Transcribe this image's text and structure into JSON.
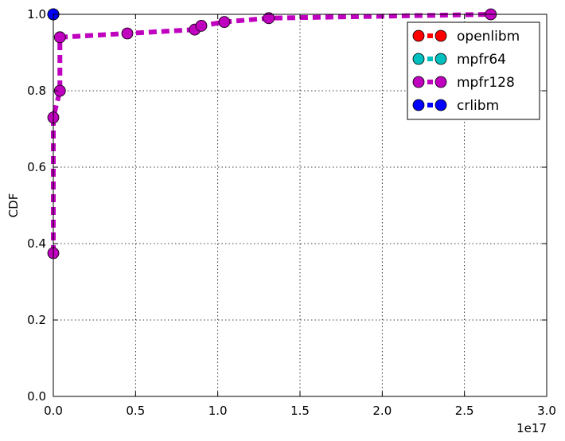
{
  "chart_data": {
    "type": "line",
    "title": "",
    "xlabel": "",
    "ylabel": "CDF",
    "x_offset_label": "1e17",
    "x_scale": 1e+17,
    "xlim": [
      0.0,
      3.0
    ],
    "ylim": [
      0.0,
      1.0
    ],
    "xticks": [
      "0.0",
      "0.5",
      "1.0",
      "1.5",
      "2.0",
      "2.5",
      "3.0"
    ],
    "yticks": [
      "0.0",
      "0.2",
      "0.4",
      "0.6",
      "0.8",
      "1.0"
    ],
    "grid": true,
    "legend_position": "top-right",
    "series": [
      {
        "name": "openlibm",
        "color": "#ff0000",
        "x": [
          0.0
        ],
        "y": [
          1.0
        ]
      },
      {
        "name": "mpfr64",
        "color": "#00bfbf",
        "x": [
          0.0
        ],
        "y": [
          1.0
        ]
      },
      {
        "name": "mpfr128",
        "color": "#bf00bf",
        "x": [
          0.0,
          0.0,
          0.04,
          0.04,
          0.45,
          0.86,
          0.9,
          1.04,
          1.31,
          2.66
        ],
        "y": [
          0.375,
          0.73,
          0.8,
          0.94,
          0.95,
          0.96,
          0.97,
          0.98,
          0.99,
          1.0
        ]
      },
      {
        "name": "crlibm",
        "color": "#0000ff",
        "x": [
          0.0
        ],
        "y": [
          1.0
        ]
      }
    ]
  }
}
